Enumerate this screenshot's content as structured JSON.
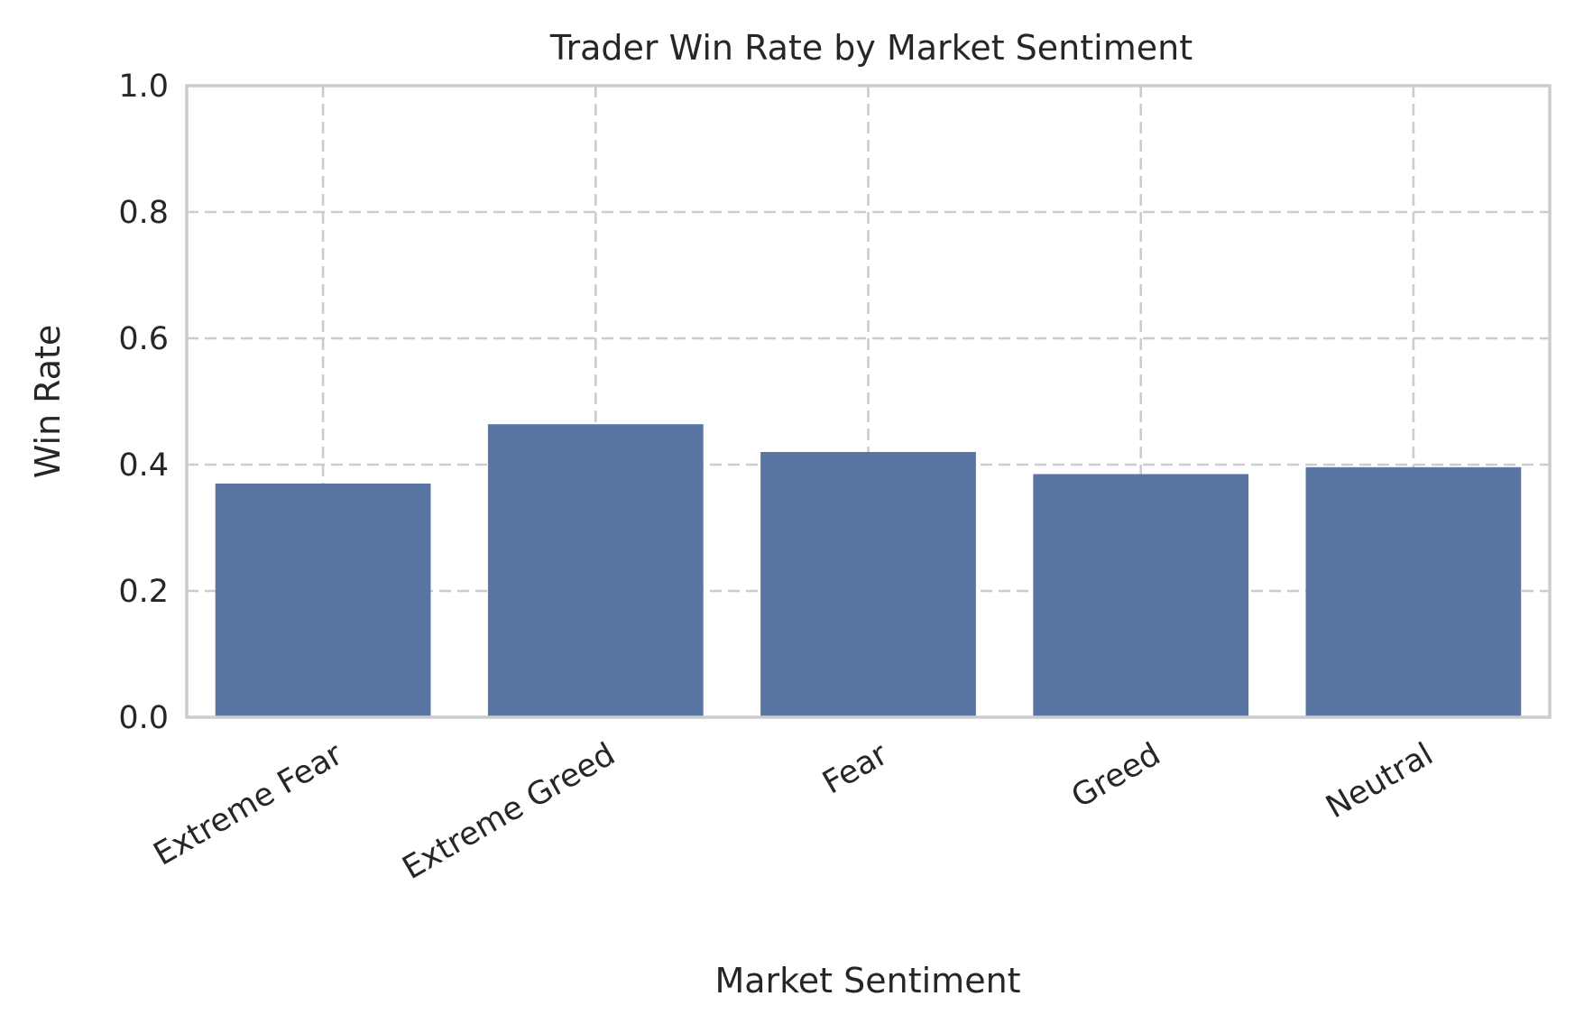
{
  "chart_data": {
    "type": "bar",
    "title": "Trader Win Rate by Market Sentiment",
    "xlabel": "Market Sentiment",
    "ylabel": "Win Rate",
    "categories": [
      "Extreme Fear",
      "Extreme Greed",
      "Fear",
      "Greed",
      "Neutral"
    ],
    "values": [
      0.37,
      0.464,
      0.42,
      0.385,
      0.396
    ],
    "ylim": [
      0,
      1.0
    ],
    "yticks": [
      "0.0",
      "0.2",
      "0.4",
      "0.6",
      "0.8",
      "1.0"
    ],
    "grid": true,
    "bar_color": "#5975a4",
    "grid_color": "#cccccc"
  }
}
